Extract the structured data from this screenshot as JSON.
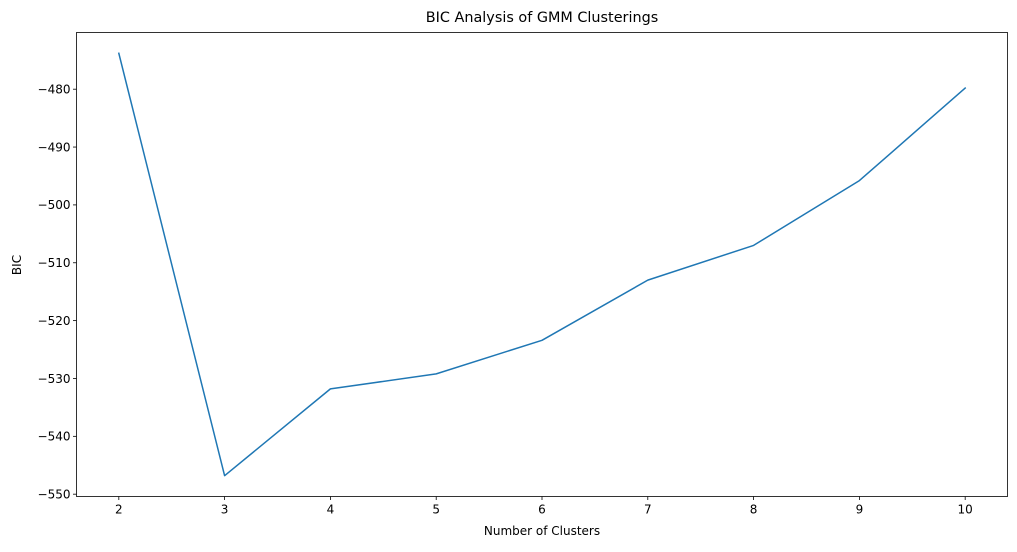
{
  "chart_data": {
    "type": "line",
    "title": "BIC Analysis of GMM Clusterings",
    "xlabel": "Number of Clusters",
    "ylabel": "BIC",
    "x": [
      2,
      3,
      4,
      5,
      6,
      7,
      8,
      9,
      10
    ],
    "series": [
      {
        "values": [
          -473.8,
          -546.8,
          -531.8,
          -529.2,
          -523.4,
          -513.0,
          -507.0,
          -495.8,
          -479.8
        ]
      }
    ],
    "xlim": [
      1.6,
      10.4
    ],
    "ylim": [
      -550.4,
      -470.2
    ],
    "xticks": [
      2,
      3,
      4,
      5,
      6,
      7,
      8,
      9,
      10
    ],
    "yticks": [
      -550,
      -540,
      -530,
      -520,
      -510,
      -500,
      -490,
      -480
    ],
    "grid": false,
    "line_color": "#1f77b4"
  }
}
